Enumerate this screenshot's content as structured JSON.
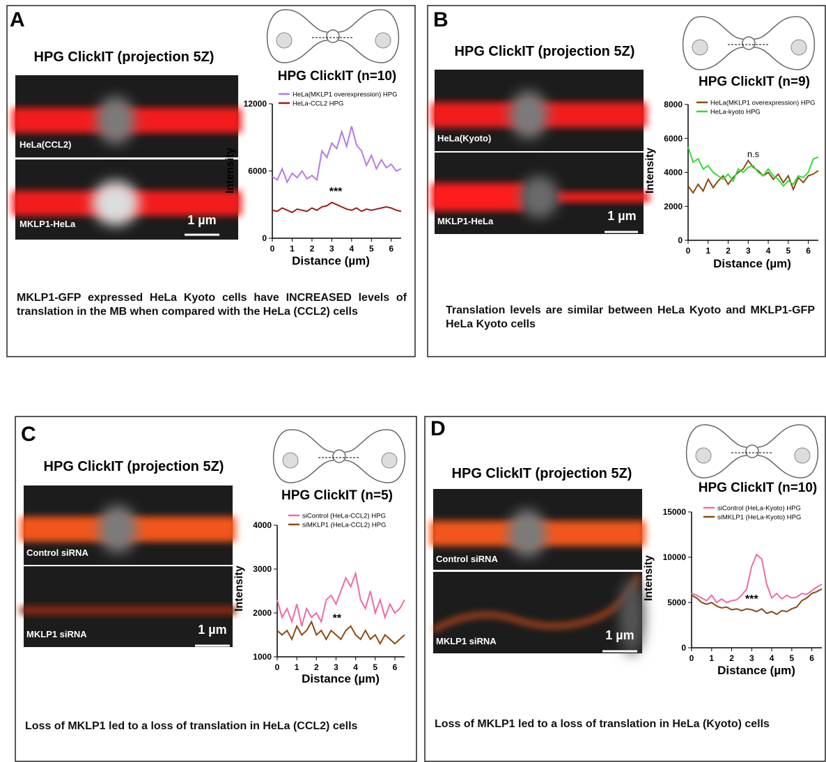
{
  "panels": [
    {
      "letter": "A",
      "image_title": "HPG ClickIT (projection 5Z)",
      "image_labels": [
        "HeLa(CCL2)",
        "MKLP1-HeLa"
      ],
      "scale_bar": "1 µm",
      "caption": "MKLP1-GFP expressed HeLa Kyoto cells have INCREASED levels of translation in the MB when compared with the HeLa (CCL2) cells"
    },
    {
      "letter": "B",
      "image_title": "HPG ClickIT (projection 5Z)",
      "image_labels": [
        "HeLa(Kyoto)",
        "MKLP1-HeLa"
      ],
      "scale_bar": "1 µm",
      "caption": "Translation levels are similar between HeLa Kyoto and MKLP1-GFP HeLa Kyoto cells"
    },
    {
      "letter": "C",
      "image_title": "HPG ClickIT (projection 5Z)",
      "image_labels": [
        "Control siRNA",
        "MKLP1 siRNA"
      ],
      "scale_bar": "1 µm",
      "caption": "Loss of MKLP1 led to a loss of translation in HeLa (CCL2) cells"
    },
    {
      "letter": "D",
      "image_title": "HPG ClickIT (projection 5Z)",
      "image_labels": [
        "Control siRNA",
        "MKLP1 siRNA"
      ],
      "scale_bar": "1 µm",
      "caption": "Loss of MKLP1 led to a loss of translation in HeLa (Kyoto) cells"
    }
  ],
  "chart_data": [
    {
      "type": "line",
      "title": "HPG ClickIT (n=10)",
      "x_label": "Distance (µm)",
      "y_label": "Intensity",
      "annotation": "***",
      "x": [
        0,
        0.25,
        0.5,
        0.75,
        1,
        1.25,
        1.5,
        1.75,
        2,
        2.25,
        2.5,
        2.75,
        3,
        3.25,
        3.5,
        3.75,
        4,
        4.25,
        4.5,
        4.75,
        5,
        5.25,
        5.5,
        5.75,
        6,
        6.25,
        6.5
      ],
      "xlim": [
        0,
        6.5
      ],
      "xticks": [
        0,
        1,
        2,
        3,
        4,
        5,
        6
      ],
      "ylim": [
        0,
        12000
      ],
      "yticks": [
        0,
        6000,
        12000
      ],
      "series": [
        {
          "name": "HeLa(MKLP1 overexpression) HPG",
          "color": "#b57ae6",
          "values": [
            5500,
            5200,
            6200,
            5000,
            5800,
            5400,
            6000,
            5300,
            5600,
            5200,
            7800,
            7200,
            8500,
            8000,
            9500,
            8200,
            10000,
            8300,
            7800,
            6500,
            7400,
            6200,
            7000,
            6300,
            6600,
            6000,
            6200
          ]
        },
        {
          "name": "HeLa-CCL2 HPG",
          "color": "#9b1c1c",
          "values": [
            2500,
            2400,
            2700,
            2500,
            2300,
            2600,
            2500,
            2400,
            2700,
            2500,
            2800,
            2900,
            3200,
            3000,
            2800,
            2600,
            2500,
            2700,
            2400,
            2600,
            2500,
            2600,
            2700,
            2800,
            2700,
            2500,
            2400
          ]
        }
      ]
    },
    {
      "type": "line",
      "title": "HPG ClickIT (n=9)",
      "x_label": "Distance (µm)",
      "y_label": "Intensity",
      "annotation": "n.s",
      "x": [
        0,
        0.25,
        0.5,
        0.75,
        1,
        1.25,
        1.5,
        1.75,
        2,
        2.25,
        2.5,
        2.75,
        3,
        3.25,
        3.5,
        3.75,
        4,
        4.25,
        4.5,
        4.75,
        5,
        5.25,
        5.5,
        5.75,
        6,
        6.25,
        6.5
      ],
      "xlim": [
        0,
        6.5
      ],
      "xticks": [
        0,
        1,
        2,
        3,
        4,
        5,
        6
      ],
      "ylim": [
        0,
        8000
      ],
      "yticks": [
        0,
        2000,
        4000,
        6000,
        8000
      ],
      "series": [
        {
          "name": "HeLa(MKLP1 overexpression) HPG",
          "color": "#8b4a12",
          "values": [
            3200,
            2800,
            3300,
            2900,
            3600,
            3100,
            3500,
            3800,
            3300,
            3700,
            4000,
            4200,
            4700,
            4300,
            4100,
            3800,
            4000,
            3600,
            3900,
            3400,
            3800,
            3000,
            3700,
            3400,
            3800,
            3900,
            4100
          ]
        },
        {
          "name": "HeLa-kyoto HPG",
          "color": "#33dd33",
          "values": [
            5500,
            4600,
            4800,
            4200,
            4400,
            4000,
            3800,
            3600,
            3900,
            3500,
            4200,
            4000,
            4300,
            4400,
            4000,
            3800,
            4200,
            3800,
            3600,
            3200,
            3500,
            3300,
            3800,
            3700,
            4000,
            4800,
            4900
          ]
        }
      ]
    },
    {
      "type": "line",
      "title": "HPG ClickIT (n=5)",
      "x_label": "Distance (µm)",
      "y_label": "Intensity",
      "annotation": "**",
      "x": [
        0,
        0.25,
        0.5,
        0.75,
        1,
        1.25,
        1.5,
        1.75,
        2,
        2.25,
        2.5,
        2.75,
        3,
        3.25,
        3.5,
        3.75,
        4,
        4.25,
        4.5,
        4.75,
        5,
        5.25,
        5.5,
        5.75,
        6,
        6.25,
        6.5
      ],
      "xlim": [
        0,
        6.5
      ],
      "xticks": [
        0,
        1,
        2,
        3,
        4,
        5,
        6
      ],
      "ylim": [
        1000,
        4000
      ],
      "yticks": [
        1000,
        2000,
        3000,
        4000
      ],
      "series": [
        {
          "name": "siControl (HeLa-CCL2) HPG",
          "color": "#f06aa8",
          "values": [
            2300,
            1900,
            2100,
            1800,
            2200,
            1700,
            2100,
            1900,
            2000,
            1800,
            2300,
            2400,
            2200,
            2500,
            2800,
            2600,
            2900,
            2300,
            2100,
            2500,
            2000,
            2300,
            1900,
            2200,
            2000,
            2100,
            2300
          ]
        },
        {
          "name": "siMKLP1 (HeLa-CCL2) HPG",
          "color": "#8b4a12",
          "values": [
            1600,
            1500,
            1600,
            1400,
            1700,
            1500,
            1600,
            1800,
            1500,
            1600,
            1400,
            1600,
            1500,
            1400,
            1600,
            1700,
            1500,
            1400,
            1600,
            1400,
            1500,
            1300,
            1500,
            1400,
            1300,
            1400,
            1500
          ]
        }
      ]
    },
    {
      "type": "line",
      "title": "HPG ClickIT (n=10)",
      "x_label": "Distance (µm)",
      "y_label": "Intensity",
      "annotation": "***",
      "x": [
        0,
        0.25,
        0.5,
        0.75,
        1,
        1.25,
        1.5,
        1.75,
        2,
        2.25,
        2.5,
        2.75,
        3,
        3.25,
        3.5,
        3.75,
        4,
        4.25,
        4.5,
        4.75,
        5,
        5.25,
        5.5,
        5.75,
        6,
        6.25,
        6.5
      ],
      "xlim": [
        0,
        6.5
      ],
      "xticks": [
        0,
        1,
        2,
        3,
        4,
        5,
        6
      ],
      "ylim": [
        0,
        15000
      ],
      "yticks": [
        0,
        5000,
        10000,
        15000
      ],
      "series": [
        {
          "name": "siControl (HeLa-Kyoto) HPG",
          "color": "#f06aa8",
          "values": [
            6000,
            5800,
            5500,
            5200,
            5800,
            5000,
            5400,
            5000,
            5200,
            5300,
            5800,
            6500,
            9000,
            10300,
            9800,
            7000,
            5500,
            6000,
            5400,
            5800,
            5500,
            5600,
            6000,
            5900,
            6300,
            6700,
            7000
          ]
        },
        {
          "name": "siMKLP1 (HeLa-Kyoto) HPG",
          "color": "#8b4a12",
          "values": [
            5800,
            5500,
            5000,
            4800,
            5000,
            4600,
            4400,
            4500,
            4200,
            4300,
            4100,
            4300,
            4200,
            4000,
            4300,
            3800,
            4000,
            3700,
            4100,
            4000,
            4300,
            4500,
            5200,
            5500,
            6000,
            6200,
            6500
          ]
        }
      ]
    }
  ]
}
